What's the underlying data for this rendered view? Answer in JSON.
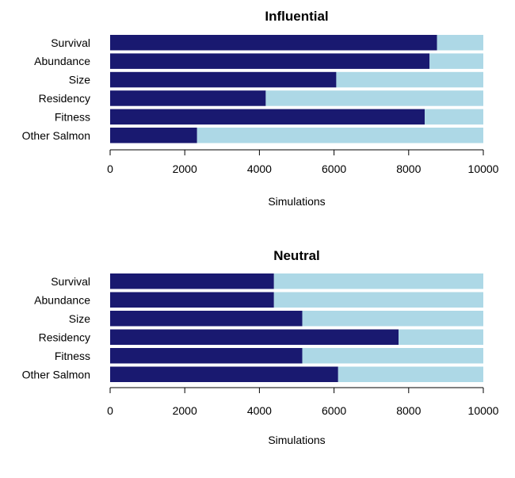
{
  "chart_data": [
    {
      "type": "bar",
      "orientation": "horizontal",
      "stacked": true,
      "title": "Influential",
      "xlabel": "Simulations",
      "ylabel": "",
      "xlim": [
        0,
        10000
      ],
      "xticks": [
        "0",
        "2000",
        "4000",
        "6000",
        "8000",
        "10000"
      ],
      "categories": [
        "Survival",
        "Abundance",
        "Size",
        "Residency",
        "Fitness",
        "Other Salmon"
      ],
      "series": [
        {
          "values": [
            8760,
            8560,
            6060,
            4170,
            8430,
            2330
          ],
          "color": "#191970"
        },
        {
          "values": [
            1240,
            1440,
            3940,
            5830,
            1570,
            7670
          ],
          "color": "#ADD8E6"
        }
      ],
      "grid": false,
      "legend": "none"
    },
    {
      "type": "bar",
      "orientation": "horizontal",
      "stacked": true,
      "title": "Neutral",
      "xlabel": "Simulations",
      "ylabel": "",
      "xlim": [
        0,
        10000
      ],
      "xticks": [
        "0",
        "2000",
        "4000",
        "6000",
        "8000",
        "10000"
      ],
      "categories": [
        "Survival",
        "Abundance",
        "Size",
        "Residency",
        "Fitness",
        "Other Salmon"
      ],
      "series": [
        {
          "values": [
            4390,
            4390,
            5150,
            7730,
            5150,
            6110
          ],
          "color": "#191970"
        },
        {
          "values": [
            5610,
            5610,
            4850,
            2270,
            4850,
            3890
          ],
          "color": "#ADD8E6"
        }
      ],
      "grid": false,
      "legend": "none"
    }
  ]
}
